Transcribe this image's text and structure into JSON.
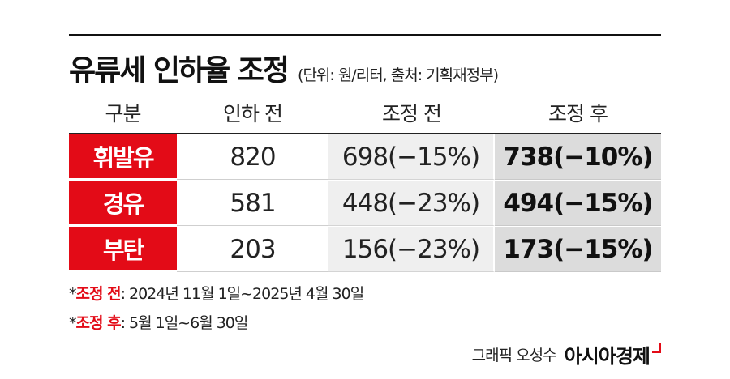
{
  "title": "유류세 인하율 조정",
  "subtitle": "(단위: 원/리터, 출처: 기획재정부)",
  "table": {
    "headers": [
      "구분",
      "인하 전",
      "조정 전",
      "조정 후"
    ],
    "rows": [
      {
        "fuel": "휘발유",
        "before": "820",
        "adj_before": "698(−15%)",
        "adj_after": "738(−10%)"
      },
      {
        "fuel": "경유",
        "before": "581",
        "adj_before": "448(−23%)",
        "adj_after": "494(−15%)"
      },
      {
        "fuel": "부탄",
        "before": "203",
        "adj_before": "156(−23%)",
        "adj_after": "173(−15%)"
      }
    ]
  },
  "notes": [
    {
      "star": "*",
      "label": "조정 전",
      "text": ": 2024년 11월 1일~2025년 4월 30일"
    },
    {
      "star": "*",
      "label": "조정 후",
      "text": ": 5월 1일~6월 30일"
    }
  ],
  "credit": {
    "by": "그래픽 오성수",
    "brand": "아시아경제"
  },
  "colors": {
    "accent": "#e30b17",
    "cell_mid": "#efefef",
    "cell_dark": "#dcdcdc"
  }
}
